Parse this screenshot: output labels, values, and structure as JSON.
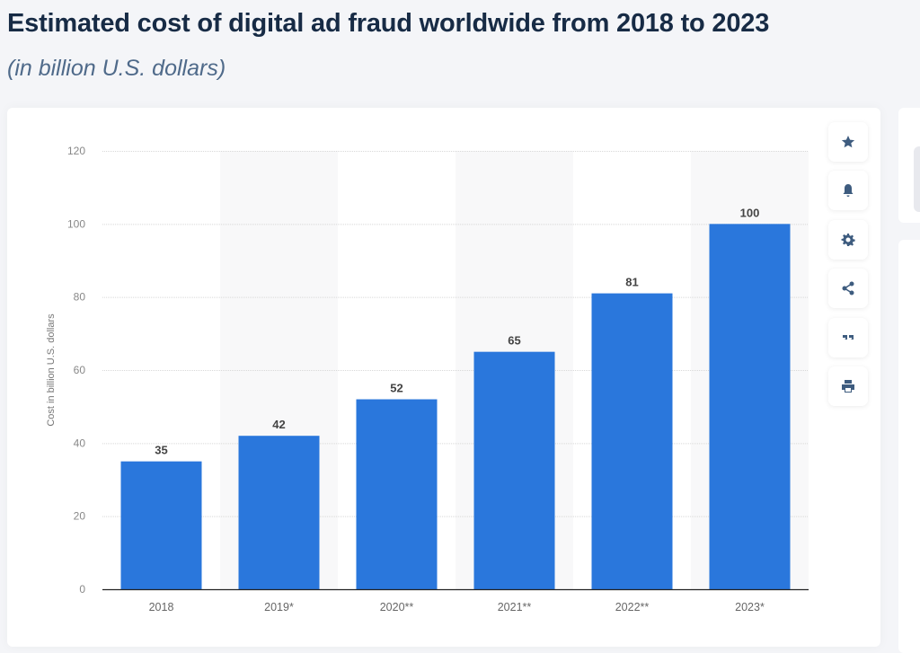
{
  "header": {
    "title": "Estimated cost of digital ad fraud worldwide from 2018 to 2023",
    "subtitle": "(in billion U.S. dollars)"
  },
  "toolbar": {
    "icons": [
      "star-icon",
      "bell-icon",
      "gear-icon",
      "share-icon",
      "quote-icon",
      "print-icon"
    ]
  },
  "colors": {
    "bar": "#2a77dc",
    "band": "#f8f8f9",
    "axis": "#222222",
    "grid": "#d8d8d8"
  },
  "chart_data": {
    "type": "bar",
    "categories": [
      "2018",
      "2019*",
      "2020**",
      "2021**",
      "2022**",
      "2023*"
    ],
    "values": [
      35,
      42,
      52,
      65,
      81,
      100
    ],
    "data_labels": [
      "35",
      "42",
      "52",
      "65",
      "81",
      "100"
    ],
    "title": "",
    "xlabel": "",
    "ylabel": "Cost in billion U.S. dollars",
    "ylim": [
      0,
      120
    ],
    "yticks": [
      "0",
      "20",
      "40",
      "60",
      "80",
      "100",
      "120"
    ],
    "grid": true,
    "legend": "none"
  }
}
